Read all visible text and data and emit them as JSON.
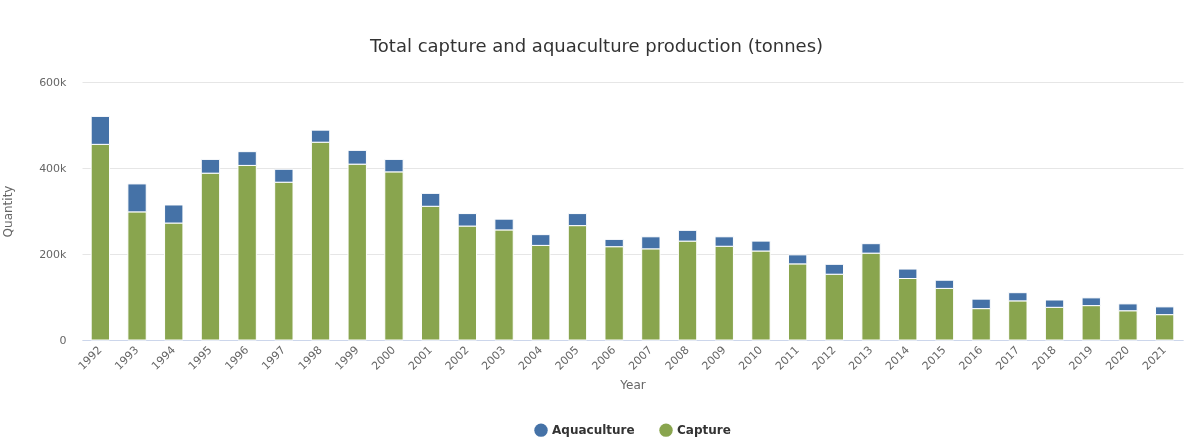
{
  "chart_data": {
    "type": "bar",
    "title": "Total capture and aquaculture production (tonnes)",
    "xlabel": "Year",
    "ylabel": "Quantity",
    "categories": [
      "1992",
      "1993",
      "1994",
      "1995",
      "1996",
      "1997",
      "1998",
      "1999",
      "2000",
      "2001",
      "2002",
      "2003",
      "2004",
      "2005",
      "2006",
      "2007",
      "2008",
      "2009",
      "2010",
      "2011",
      "2012",
      "2013",
      "2014",
      "2015",
      "2016",
      "2017",
      "2018",
      "2019",
      "2020",
      "2021"
    ],
    "series": [
      {
        "name": "Capture",
        "color": "#89a54e",
        "values": [
          455000,
          298000,
          272000,
          388000,
          406000,
          367000,
          460000,
          409000,
          391000,
          311000,
          265000,
          256000,
          220000,
          266000,
          217000,
          212000,
          230000,
          218000,
          207000,
          177000,
          153000,
          202000,
          143000,
          120000,
          73000,
          91000,
          76000,
          80000,
          68000,
          59000
        ]
      },
      {
        "name": "Aquaculture",
        "color": "#4572a7",
        "values": [
          65000,
          65000,
          42000,
          32000,
          32000,
          30000,
          28000,
          32000,
          29000,
          30000,
          29000,
          25000,
          25000,
          28000,
          17000,
          28000,
          25000,
          22000,
          23000,
          21000,
          23000,
          22000,
          22000,
          19000,
          22000,
          19000,
          17000,
          18000,
          16000,
          18000
        ]
      }
    ],
    "stacked": true,
    "ylim": [
      0,
      600000
    ],
    "yticks": [
      0,
      {
        "value": 200000,
        "label": "200k"
      },
      {
        "value": 400000,
        "label": "400k"
      },
      {
        "value": 600000,
        "label": "600k"
      }
    ],
    "grid": "y",
    "legend": "bottom"
  }
}
